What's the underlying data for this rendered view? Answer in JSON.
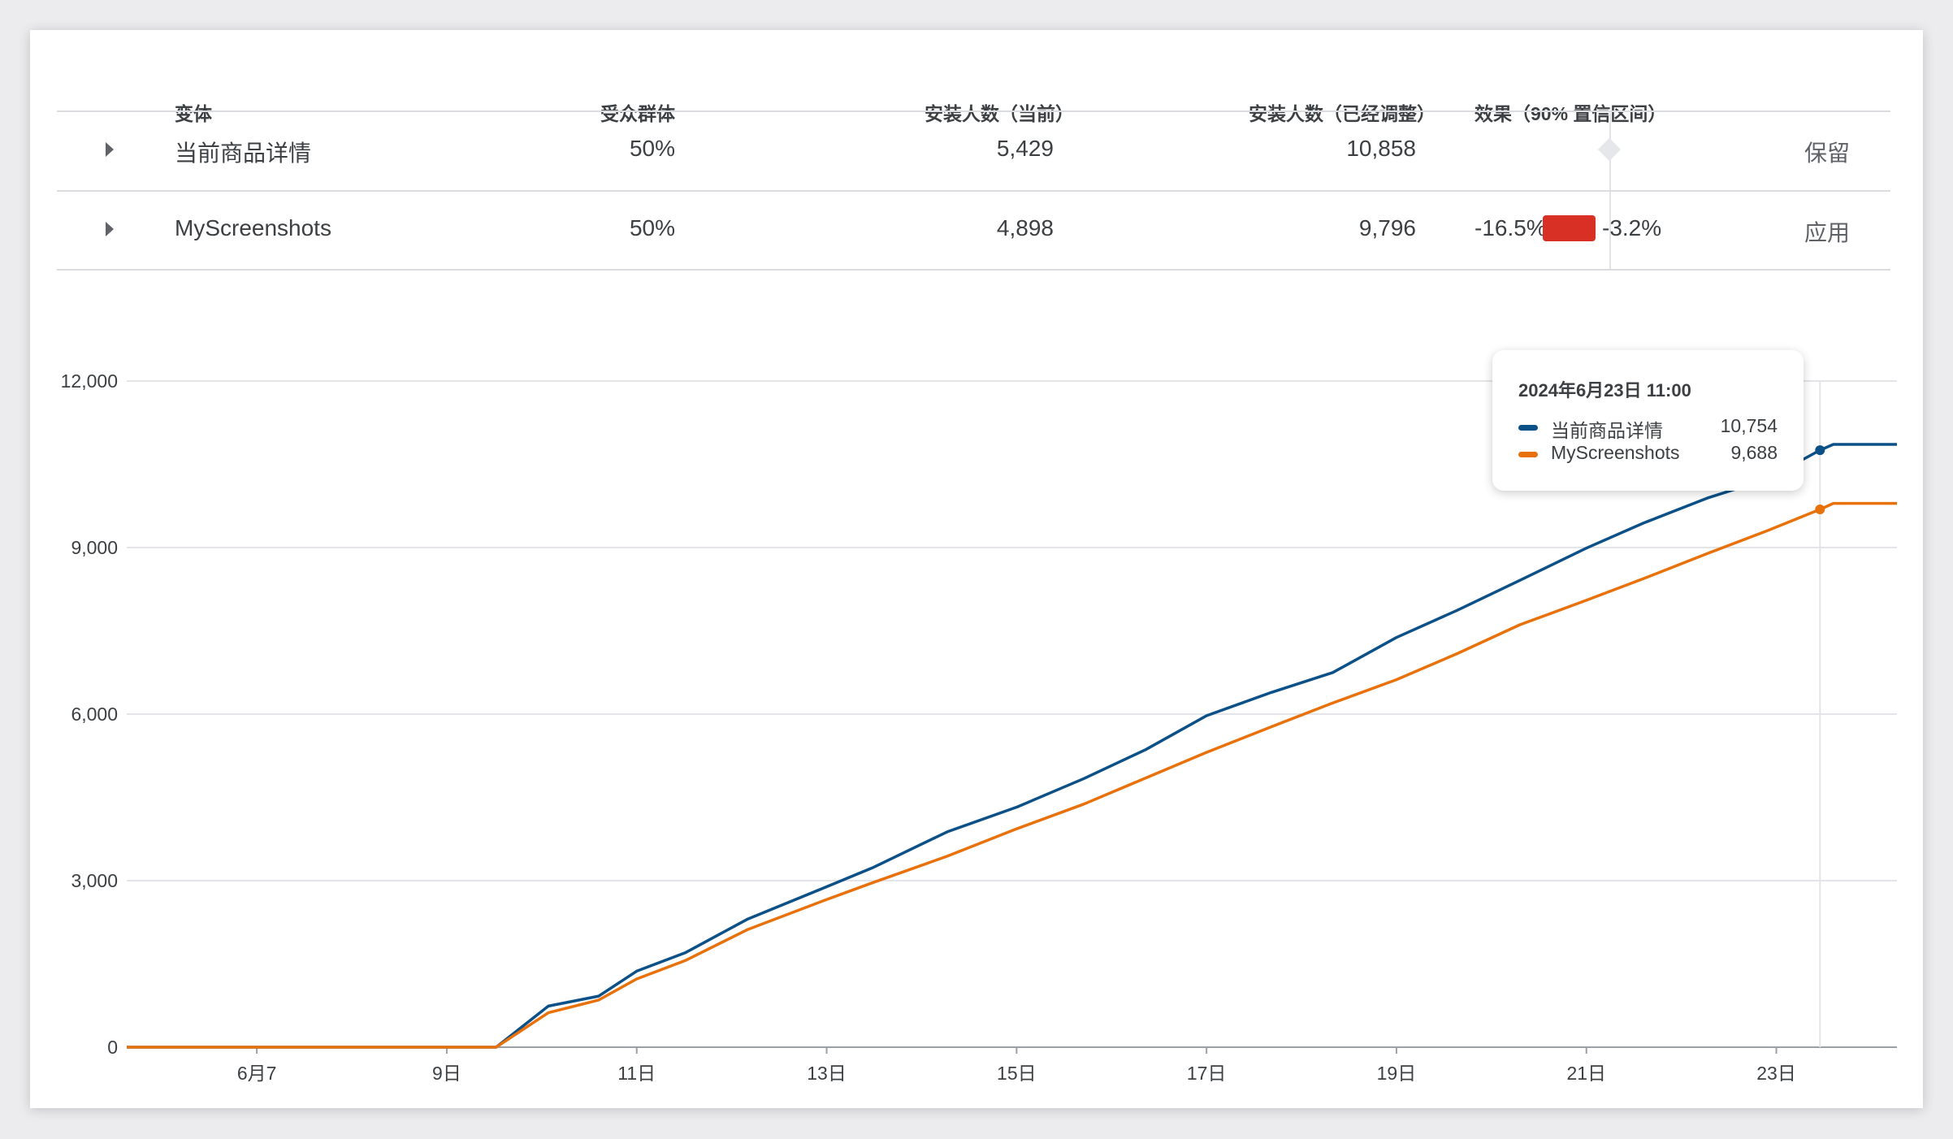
{
  "table": {
    "headers": [
      "变体",
      "受众群体",
      "安装人数（当前）",
      "安装人数（已经调整）",
      "效果（90% 置信区间）"
    ],
    "rows": [
      {
        "name": "当前商品详情",
        "audience": "50%",
        "installs_current": "5,429",
        "installs_adjusted": "10,858",
        "effect_low": "",
        "effect_high": "",
        "action": "保留"
      },
      {
        "name": "MyScreenshots",
        "audience": "50%",
        "installs_current": "4,898",
        "installs_adjusted": "9,796",
        "effect_low": "-16.5%",
        "effect_high": "-3.2%",
        "action": "应用"
      }
    ],
    "effect_bar_color": "#d93025"
  },
  "tooltip": {
    "title": "2024年6月23日 11:00",
    "items": [
      {
        "name": "当前商品详情",
        "value": "10,754",
        "color": "#0b5087"
      },
      {
        "name": "MyScreenshots",
        "value": "9,688",
        "color": "#e8710a"
      }
    ]
  },
  "chart_data": {
    "type": "line",
    "x_unit": "day of June 2024",
    "xlim": [
      5.63,
      24.27
    ],
    "ylim": [
      0,
      12000
    ],
    "x_ticks": [
      7,
      9,
      11,
      13,
      15,
      17,
      19,
      21,
      23
    ],
    "x_tick_labels": [
      "6月7",
      "9日",
      "11日",
      "13日",
      "15日",
      "17日",
      "19日",
      "21日",
      "23日"
    ],
    "y_ticks": [
      0,
      3000,
      6000,
      9000,
      12000
    ],
    "y_tick_labels": [
      "0",
      "3,000",
      "6,000",
      "9,000",
      "12,000"
    ],
    "grid": true,
    "hover_x": 23.46,
    "series": [
      {
        "name": "当前商品详情",
        "color": "#0b5087",
        "x": [
          5.63,
          9.52,
          10.07,
          10.6,
          11.0,
          11.51,
          12.17,
          13.0,
          13.48,
          14.27,
          15.01,
          15.71,
          16.36,
          17.0,
          17.68,
          18.33,
          19.0,
          19.64,
          20.3,
          21.0,
          21.6,
          22.27,
          22.9,
          23.46,
          23.6,
          24.27
        ],
        "y": [
          0,
          0,
          740,
          920,
          1370,
          1700,
          2310,
          2890,
          3230,
          3880,
          4330,
          4840,
          5360,
          5970,
          6390,
          6750,
          7380,
          7870,
          8410,
          8990,
          9440,
          9890,
          10230,
          10754,
          10858,
          10858
        ]
      },
      {
        "name": "MyScreenshots",
        "color": "#e8710a",
        "x": [
          5.63,
          9.52,
          10.07,
          10.6,
          11.0,
          11.51,
          12.17,
          13.0,
          13.48,
          14.27,
          15.01,
          15.71,
          16.36,
          17.0,
          17.68,
          18.33,
          19.0,
          19.64,
          20.3,
          21.0,
          21.6,
          22.27,
          22.9,
          23.46,
          23.6,
          24.27
        ],
        "y": [
          0,
          0,
          620,
          850,
          1230,
          1560,
          2120,
          2660,
          2960,
          3440,
          3940,
          4380,
          4850,
          5310,
          5770,
          6200,
          6620,
          7090,
          7610,
          8050,
          8440,
          8890,
          9300,
          9688,
          9796,
          9796
        ]
      }
    ]
  }
}
